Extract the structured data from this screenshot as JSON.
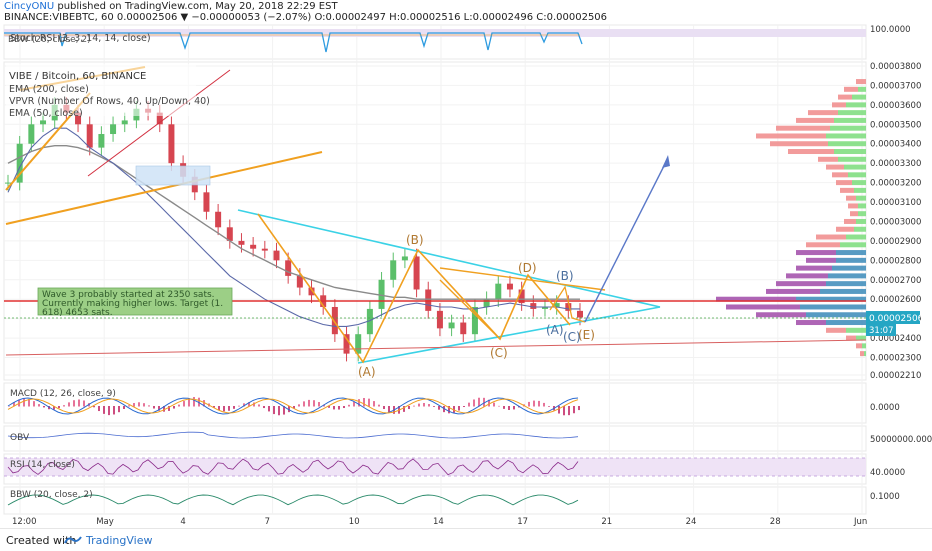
{
  "header": {
    "author": "CincyONU",
    "published_text": "published on TradingView.com, May 20, 2018 22:29 EST",
    "symbol_line": "BINANCE:VIBEBTC, 60  0.00002506  ▼ −0.00000053 (−2.07%) O:0.00002497 H:0.00002516 L:0.00002496 C:0.00002506"
  },
  "footer": {
    "created_with": "Created with",
    "brand": "TradingView"
  },
  "colors": {
    "up_candle": "#5bbf6a",
    "down_candle": "#d64550",
    "cyan_line": "#3bd2e6",
    "orange_line": "#f0a020",
    "red_line": "#e03030",
    "arrow": "#5a78c8",
    "price_label": "#25a6c4"
  },
  "chart_data": [
    {
      "type": "line",
      "title": "VIBE / Bitcoin, 60, BINANCE",
      "legend": [
        "EMA (200, close)",
        "VPVR (Number Of Rows, 40, Up/Down, 40)",
        "EMA (50, close)"
      ],
      "y_ticks": [
        "0.00003800",
        "0.00003700",
        "0.00003600",
        "0.00003500",
        "0.00003400",
        "0.00003300",
        "0.00003200",
        "0.00003100",
        "0.00003000",
        "0.00002900",
        "0.00002800",
        "0.00002700",
        "0.00002600",
        "0.00002500",
        "0.00002400",
        "0.00002300",
        "0.00002210"
      ],
      "ylim": [
        2.21e-05,
        3.8e-05
      ],
      "x_ticks": [
        "12:00",
        "May",
        "4",
        "7",
        "10",
        "14",
        "17",
        "21",
        "24",
        "28",
        "Jun"
      ],
      "last_price_label": "0.00002506",
      "countdown_label": "31:07",
      "close": [
        3.2e-05,
        3.4e-05,
        3.5e-05,
        3.52e-05,
        3.6e-05,
        3.56e-05,
        3.5e-05,
        3.38e-05,
        3.45e-05,
        3.5e-05,
        3.52e-05,
        3.58e-05,
        3.56e-05,
        3.5e-05,
        3.3e-05,
        3.23e-05,
        3.15e-05,
        3.05e-05,
        2.97e-05,
        2.9e-05,
        2.88e-05,
        2.86e-05,
        2.85e-05,
        2.8e-05,
        2.72e-05,
        2.66e-05,
        2.62e-05,
        2.56e-05,
        2.42e-05,
        2.32e-05,
        2.42e-05,
        2.55e-05,
        2.7e-05,
        2.8e-05,
        2.82e-05,
        2.65e-05,
        2.54e-05,
        2.45e-05,
        2.48e-05,
        2.42e-05,
        2.56e-05,
        2.6e-05,
        2.68e-05,
        2.65e-05,
        2.58e-05,
        2.55e-05,
        2.56e-05,
        2.58e-05,
        2.54e-05,
        2.506e-05
      ],
      "ema50": [
        3.15e-05,
        3.28e-05,
        3.38e-05,
        3.44e-05,
        3.48e-05,
        3.48e-05,
        3.44e-05,
        3.38e-05,
        3.34e-05,
        3.3e-05,
        3.25e-05,
        3.2e-05,
        3.14e-05,
        3.08e-05,
        3.02e-05,
        2.96e-05,
        2.9e-05,
        2.84e-05,
        2.78e-05,
        2.72e-05,
        2.68e-05,
        2.64e-05,
        2.6e-05,
        2.57e-05,
        2.54e-05,
        2.51e-05,
        2.49e-05,
        2.47e-05,
        2.46e-05,
        2.46e-05,
        2.47e-05,
        2.49e-05,
        2.52e-05,
        2.55e-05,
        2.57e-05,
        2.58e-05,
        2.57e-05,
        2.56e-05,
        2.56e-05,
        2.55e-05,
        2.55e-05,
        2.56e-05,
        2.57e-05,
        2.58e-05,
        2.57e-05,
        2.56e-05,
        2.56e-05,
        2.56e-05,
        2.55e-05,
        2.55e-05
      ],
      "ema200": [
        3.3e-05,
        3.33e-05,
        3.36e-05,
        3.38e-05,
        3.39e-05,
        3.39e-05,
        3.38e-05,
        3.36e-05,
        3.33e-05,
        3.3e-05,
        3.26e-05,
        3.22e-05,
        3.18e-05,
        3.14e-05,
        3.1e-05,
        3.06e-05,
        3.02e-05,
        2.98e-05,
        2.94e-05,
        2.9e-05,
        2.86e-05,
        2.83e-05,
        2.8e-05,
        2.77e-05,
        2.74e-05,
        2.72e-05,
        2.7e-05,
        2.68e-05,
        2.66e-05,
        2.65e-05,
        2.64e-05,
        2.63e-05,
        2.62e-05,
        2.61e-05,
        2.61e-05,
        2.6e-05,
        2.6e-05,
        2.6e-05,
        2.6e-05,
        2.6e-05,
        2.6e-05,
        2.6e-05,
        2.6e-05,
        2.6e-05,
        2.6e-05,
        2.6e-05,
        2.6e-05,
        2.6e-05,
        2.6e-05,
        2.6e-05
      ],
      "wave_labels": [
        "(A)",
        "(B)",
        "(C)",
        "(D)",
        "(E)",
        "(A)",
        "(B)",
        "(C)"
      ],
      "annotation": "Wave 3 probably started at 2350 sats.\nCurrently making higher lows. Target (1.\n618) 4653 sats."
    },
    {
      "type": "line",
      "title": "Stoch RSI (3, 3, 14, 14, close)",
      "y_ticks": [
        "100.0000"
      ]
    },
    {
      "type": "line",
      "title": "MACD (12, 26, close, 9)",
      "y_ticks": [
        "0.0000"
      ]
    },
    {
      "type": "line",
      "title": "OBV",
      "y_ticks": [
        "50000000.0000"
      ]
    },
    {
      "type": "line",
      "title": "RSI (14, close)",
      "y_ticks": [
        "40.0000"
      ]
    },
    {
      "type": "line",
      "title": "BBW (20, close, 2)",
      "y_ticks": [
        "0.1000"
      ]
    }
  ]
}
